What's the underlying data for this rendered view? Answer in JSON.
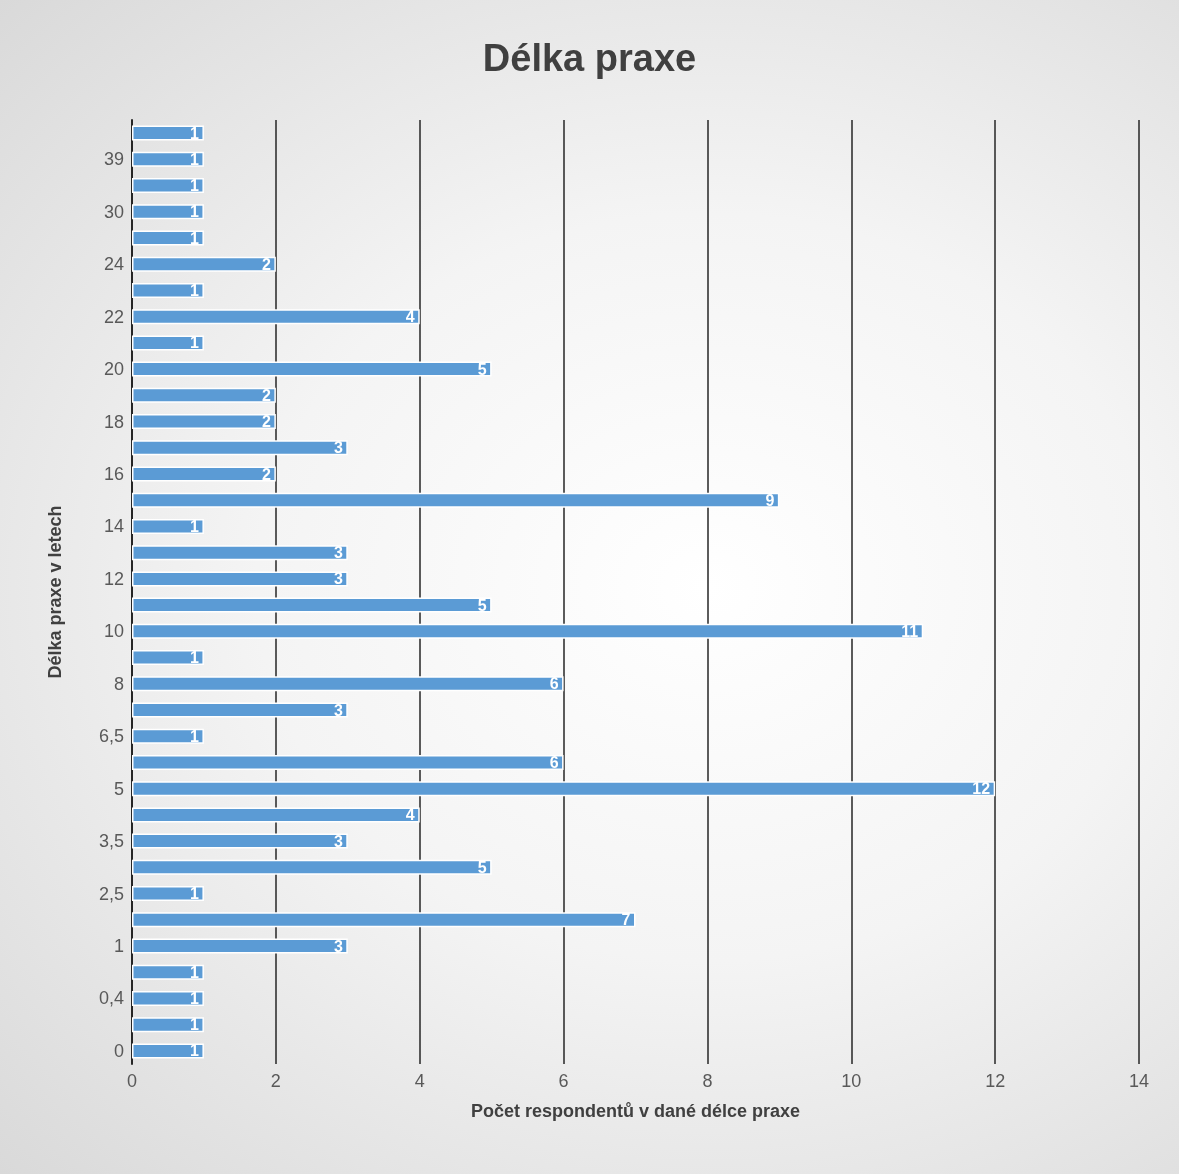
{
  "chart_data": {
    "type": "bar",
    "orientation": "horizontal",
    "title": "Délka praxe",
    "xlabel": "Počet respondentů v dané délce praxe",
    "ylabel": "Délka praxe v letech",
    "categories": [
      null,
      "39",
      null,
      "30",
      null,
      "24",
      null,
      "22",
      null,
      "20",
      null,
      "18",
      null,
      "16",
      null,
      "14",
      null,
      "12",
      null,
      "10",
      null,
      "8",
      null,
      "6,5",
      null,
      "5",
      null,
      "3,5",
      null,
      "2,5",
      null,
      "1",
      null,
      "0,4",
      null,
      "0"
    ],
    "values": [
      1,
      1,
      1,
      1,
      1,
      2,
      1,
      4,
      1,
      5,
      2,
      2,
      3,
      2,
      9,
      1,
      3,
      3,
      5,
      11,
      1,
      6,
      3,
      1,
      6,
      12,
      4,
      3,
      5,
      1,
      7,
      3,
      1,
      1,
      1,
      1
    ],
    "color": "#5b9bd5",
    "xlim": [
      0,
      14
    ],
    "xticks": [
      0,
      2,
      4,
      6,
      8,
      10,
      12,
      14
    ],
    "grid": "x",
    "data_labels": true
  }
}
